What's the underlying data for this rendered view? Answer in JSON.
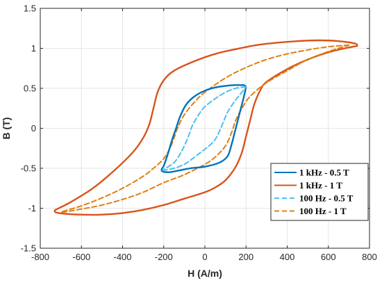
{
  "chart_data": {
    "type": "line",
    "title": "",
    "xlabel": "H (A/m)",
    "ylabel": "B (T)",
    "xlim": [
      -800,
      800
    ],
    "ylim": [
      -1.5,
      1.5
    ],
    "xticks": [
      -800,
      -600,
      -400,
      -200,
      0,
      200,
      400,
      600,
      800
    ],
    "yticks": [
      -1.5,
      -1,
      -0.5,
      0,
      0.5,
      1,
      1.5
    ],
    "xtick_labels": [
      "-800",
      "-600",
      "-400",
      "-200",
      "0",
      "200",
      "400",
      "600",
      "800"
    ],
    "ytick_labels": [
      "-1.5",
      "-1",
      "-0.5",
      "0",
      "0.5",
      "1",
      "1.5"
    ],
    "grid": true,
    "legend_position": "bottom-right",
    "series": [
      {
        "name": "1 kHz - 0.5 T",
        "color": "#0072bd",
        "dash": "solid",
        "x": [
          200,
          190,
          170,
          140,
          100,
          50,
          0,
          -50,
          -90,
          -120,
          -140,
          -160,
          -175,
          -190,
          -200,
          -210,
          -180,
          -130,
          -70,
          0,
          70,
          110,
          130,
          150,
          170,
          190,
          200
        ],
        "y": [
          0.52,
          0.54,
          0.54,
          0.54,
          0.53,
          0.51,
          0.47,
          0.4,
          0.3,
          0.15,
          0.0,
          -0.15,
          -0.28,
          -0.4,
          -0.47,
          -0.53,
          -0.55,
          -0.53,
          -0.5,
          -0.48,
          -0.43,
          -0.35,
          -0.2,
          0.0,
          0.2,
          0.4,
          0.52
        ]
      },
      {
        "name": "1 kHz - 1 T",
        "color": "#d95319",
        "dash": "solid",
        "x": [
          740,
          730,
          650,
          550,
          450,
          350,
          250,
          150,
          50,
          -50,
          -150,
          -200,
          -230,
          -250,
          -270,
          -300,
          -350,
          -450,
          -550,
          -650,
          -710,
          -730,
          -710,
          -600,
          -500,
          -400,
          -300,
          -200,
          -100,
          0,
          50,
          100,
          150,
          180,
          200,
          220,
          240,
          270,
          300,
          400,
          500,
          600,
          680,
          740
        ],
        "y": [
          1.03,
          1.06,
          1.09,
          1.1,
          1.09,
          1.07,
          1.04,
          0.99,
          0.93,
          0.84,
          0.72,
          0.6,
          0.45,
          0.25,
          0.05,
          -0.12,
          -0.3,
          -0.55,
          -0.76,
          -0.92,
          -1.0,
          -1.03,
          -1.06,
          -1.08,
          -1.08,
          -1.06,
          -1.02,
          -0.96,
          -0.88,
          -0.8,
          -0.74,
          -0.65,
          -0.48,
          -0.3,
          -0.1,
          0.1,
          0.3,
          0.48,
          0.58,
          0.74,
          0.86,
          0.95,
          1.0,
          1.03
        ]
      },
      {
        "name": "100 Hz - 0.5 T",
        "color": "#4dbeee",
        "dash": "dashed",
        "x": [
          200,
          150,
          100,
          50,
          0,
          -30,
          -60,
          -80,
          -100,
          -120,
          -150,
          -200,
          -150,
          -100,
          -60,
          -20,
          20,
          50,
          70,
          90,
          110,
          140,
          170,
          200
        ],
        "y": [
          0.52,
          0.5,
          0.45,
          0.37,
          0.27,
          0.17,
          0.04,
          -0.1,
          -0.22,
          -0.32,
          -0.43,
          -0.52,
          -0.5,
          -0.45,
          -0.38,
          -0.3,
          -0.22,
          -0.14,
          -0.04,
          0.08,
          0.2,
          0.32,
          0.42,
          0.52
        ]
      },
      {
        "name": "100 Hz - 1 T",
        "color": "#e17f0e",
        "dash": "dashed",
        "x": [
          700,
          600,
          500,
          400,
          300,
          200,
          100,
          0,
          -50,
          -100,
          -130,
          -150,
          -170,
          -200,
          -250,
          -300,
          -400,
          -500,
          -600,
          -700,
          -600,
          -500,
          -400,
          -300,
          -200,
          -100,
          0,
          50,
          100,
          130,
          150,
          180,
          220,
          300,
          400,
          500,
          600,
          700
        ],
        "y": [
          1.04,
          1.02,
          0.98,
          0.93,
          0.86,
          0.76,
          0.63,
          0.45,
          0.33,
          0.17,
          0.02,
          -0.12,
          -0.25,
          -0.38,
          -0.5,
          -0.6,
          -0.75,
          -0.87,
          -0.97,
          -1.05,
          -1.01,
          -0.96,
          -0.89,
          -0.8,
          -0.68,
          -0.58,
          -0.45,
          -0.36,
          -0.22,
          -0.05,
          0.1,
          0.25,
          0.4,
          0.57,
          0.72,
          0.86,
          0.96,
          1.04
        ]
      }
    ]
  }
}
